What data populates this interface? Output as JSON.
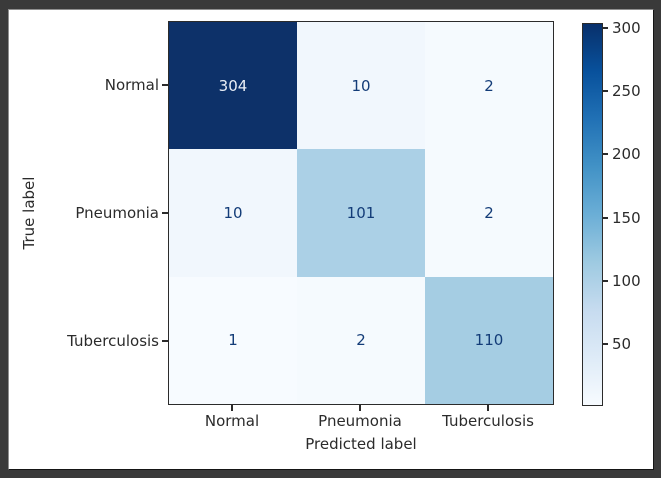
{
  "figure": {
    "outer_background": "#3a3a3a",
    "background": "#ffffff"
  },
  "chart_data": {
    "type": "heatmap",
    "subtype": "confusion_matrix",
    "title": "",
    "xlabel": "Predicted label",
    "ylabel": "True label",
    "x_tick_labels": [
      "Normal",
      "Pneumonia",
      "Tuberculosis"
    ],
    "y_tick_labels": [
      "Normal",
      "Pneumonia",
      "Tuberculosis"
    ],
    "matrix": [
      [
        304,
        10,
        2
      ],
      [
        10,
        101,
        2
      ],
      [
        1,
        2,
        110
      ]
    ],
    "value_range": [
      1,
      304
    ],
    "colormap": "Blues",
    "grid": false,
    "legend_position": "colorbar-right",
    "colorbar_ticks": [
      300,
      250,
      200,
      150,
      100,
      50
    ],
    "cell_colors": [
      [
        "#0d3169",
        "#f1f7fd",
        "#f5fafe"
      ],
      [
        "#f1f7fd",
        "#abd0e6",
        "#f5fafe"
      ],
      [
        "#f7fbff",
        "#f5fafe",
        "#a5cde3"
      ]
    ],
    "text_color_light": "#e9eef6",
    "text_color_dark": "#133c78",
    "colorbar_gradient": [
      {
        "pos": 0.0,
        "color": "#f7fbff"
      },
      {
        "pos": 0.125,
        "color": "#deebf7"
      },
      {
        "pos": 0.25,
        "color": "#c6dbef"
      },
      {
        "pos": 0.375,
        "color": "#9ecae1"
      },
      {
        "pos": 0.5,
        "color": "#6baed6"
      },
      {
        "pos": 0.625,
        "color": "#4292c6"
      },
      {
        "pos": 0.75,
        "color": "#2171b5"
      },
      {
        "pos": 0.875,
        "color": "#08519c"
      },
      {
        "pos": 1.0,
        "color": "#08306b"
      }
    ]
  }
}
